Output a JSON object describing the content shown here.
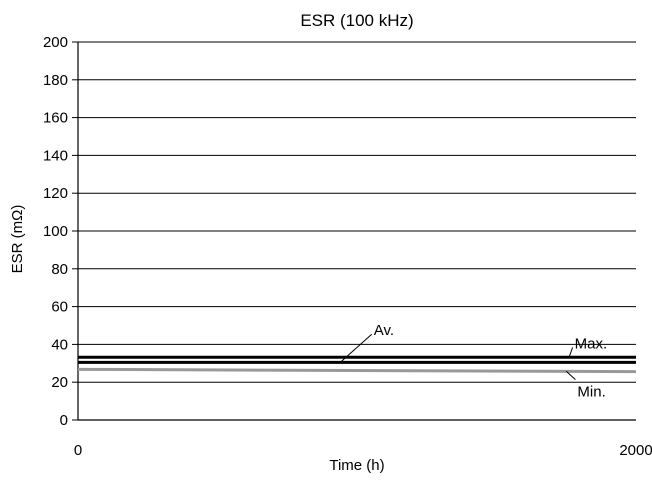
{
  "chart_data": {
    "type": "line",
    "title": "ESR (100 kHz)",
    "xlabel": "Time (h)",
    "ylabel": "ESR (mΩ)",
    "xlim": [
      0,
      2000
    ],
    "ylim": [
      0,
      200
    ],
    "x_ticks": [
      0,
      2000
    ],
    "y_ticks": [
      0,
      20,
      40,
      60,
      80,
      100,
      120,
      140,
      160,
      180,
      200
    ],
    "x_tick_labels": [
      "0",
      "2000"
    ],
    "y_tick_labels": [
      "0",
      "20",
      "40",
      "60",
      "80",
      "100",
      "120",
      "140",
      "160",
      "180",
      "200"
    ],
    "grid": true,
    "legend": "none",
    "series": [
      {
        "name": "Max.",
        "x": [
          0,
          2000
        ],
        "values": [
          33.2,
          33.2
        ],
        "color": "#000000"
      },
      {
        "name": "Av.",
        "x": [
          0,
          2000
        ],
        "values": [
          30.5,
          30.5
        ],
        "color": "#000000"
      },
      {
        "name": "Min.",
        "x": [
          0,
          2000
        ],
        "values": [
          26.8,
          25.6
        ],
        "color": "#999999"
      }
    ],
    "annotations": [
      {
        "text": "Av.",
        "series": "Av.",
        "point_x": 940,
        "point_y": 30.5,
        "label_x": 1060,
        "label_y": 47.5,
        "anchor": "start"
      },
      {
        "text": "Max.",
        "series": "Max.",
        "point_x": 1760,
        "point_y": 33.2,
        "label_x": 1780,
        "label_y": 40.5,
        "anchor": "start"
      },
      {
        "text": "Min.",
        "series": "Min.",
        "point_x": 1750,
        "point_y": 25.8,
        "label_x": 1790,
        "label_y": 15,
        "anchor": "start"
      }
    ]
  }
}
